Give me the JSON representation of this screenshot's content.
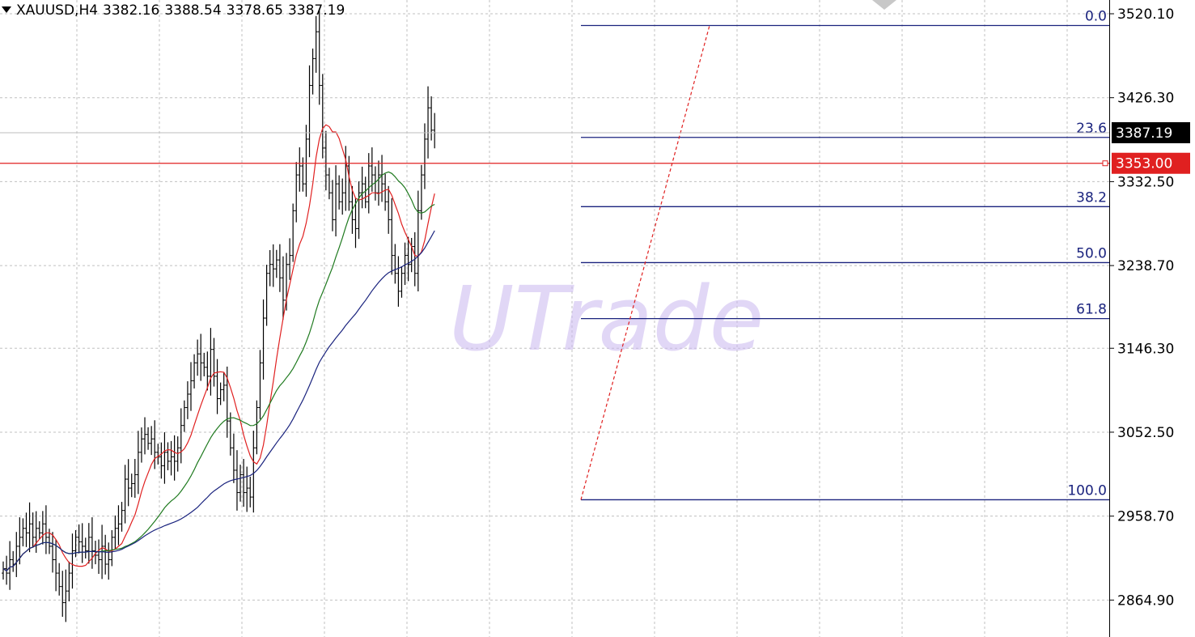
{
  "header": {
    "symbol": "XAUUSD,H4",
    "open": "3382.16",
    "high": "3388.54",
    "low": "3378.65",
    "close": "3387.19"
  },
  "watermark": "UTrade",
  "colors": {
    "bars": "#000000",
    "grid": "#c0c0c0",
    "fib": "#1a237e",
    "ma_fast": "#e02020",
    "ma_mid": "#1f7a1f",
    "ma_slow": "#1a237e",
    "hline": "#e02020",
    "price_tag": "#000000",
    "hline_tag": "#e02020"
  },
  "chart_data": {
    "type": "ohlc-bar",
    "symbol": "XAUUSD",
    "timeframe": "H4",
    "y_ticks": [
      3520.1,
      3426.3,
      3332.5,
      3238.7,
      3146.3,
      3052.5,
      2958.7,
      2864.9
    ],
    "y_tick_labels": [
      "3520.10",
      "3426.30",
      "3332.50",
      "3238.70",
      "3146.30",
      "3052.50",
      "2958.70",
      "2864.90"
    ],
    "current_price": 3387.19,
    "current_price_label": "3387.19",
    "horizontal_line": 3353.0,
    "horizontal_line_label": "3353.00",
    "fibonacci": {
      "high": 3507,
      "low": 2977,
      "levels": [
        {
          "label": "0.0",
          "ratio": 0.0
        },
        {
          "label": "23.6",
          "ratio": 0.236
        },
        {
          "label": "38.2",
          "ratio": 0.382
        },
        {
          "label": "50.0",
          "ratio": 0.5
        },
        {
          "label": "61.8",
          "ratio": 0.618
        },
        {
          "label": "100.0",
          "ratio": 1.0
        }
      ]
    },
    "closes": [
      2900,
      2895,
      2910,
      2905,
      2925,
      2935,
      2945,
      2940,
      2950,
      2935,
      2945,
      2940,
      2950,
      2935,
      2925,
      2910,
      2895,
      2880,
      2862,
      2875,
      2895,
      2920,
      2935,
      2930,
      2925,
      2920,
      2935,
      2920,
      2915,
      2910,
      2925,
      2905,
      2910,
      2935,
      2945,
      2950,
      2965,
      3000,
      2990,
      2995,
      3005,
      3030,
      3045,
      3050,
      3040,
      3045,
      3030,
      3025,
      3015,
      3030,
      3020,
      3025,
      3020,
      3035,
      3060,
      3080,
      3095,
      3110,
      3130,
      3140,
      3130,
      3125,
      3115,
      3145,
      3115,
      3090,
      3100,
      3105,
      3065,
      3035,
      3010,
      2985,
      3005,
      2985,
      2990,
      2980,
      3035,
      3080,
      3130,
      3180,
      3230,
      3240,
      3235,
      3245,
      3225,
      3200,
      3240,
      3250,
      3300,
      3340,
      3350,
      3330,
      3380,
      3440,
      3470,
      3500,
      3440,
      3370,
      3340,
      3320,
      3290,
      3330,
      3310,
      3320,
      3350,
      3310,
      3290,
      3280,
      3320,
      3330,
      3310,
      3350,
      3340,
      3320,
      3340,
      3330,
      3310,
      3290,
      3250,
      3230,
      3210,
      3230,
      3250,
      3240,
      3260,
      3230,
      3300,
      3340,
      3380,
      3415,
      3390,
      3387
    ],
    "moving_averages": [
      {
        "period": 10,
        "color_key": "ma_fast"
      },
      {
        "period": 30,
        "color_key": "ma_mid"
      },
      {
        "period": 60,
        "color_key": "ma_slow"
      }
    ]
  }
}
